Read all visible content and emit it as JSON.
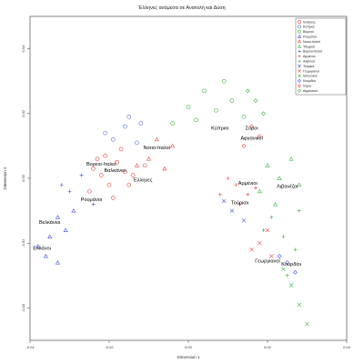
{
  "chart_data": {
    "type": "scatter",
    "title": "Έλληνες ανάμεσα σε Ανατολή και Δύση",
    "xlabel": "Dimension 1",
    "ylabel": "Dimension 2",
    "xlim": [
      -0.04,
      0.04
    ],
    "ylim": [
      -0.05,
      0.05
    ],
    "x_ticks": [
      -0.04,
      -0.02,
      0.0,
      0.02,
      0.04
    ],
    "y_ticks": [
      0.04,
      0.02,
      0.0,
      -0.02,
      -0.04
    ],
    "x_tick_labels": [
      "-0.04",
      "-0.02",
      "0.00",
      "0.02",
      "0.04"
    ],
    "y_tick_labels": [
      "0.04",
      "0.02",
      "0.00",
      "-0.02",
      "-0.04"
    ],
    "legend_position": "top-right",
    "series": [
      {
        "name": "Έλληνες",
        "color": "#e84040",
        "marker": "circle"
      },
      {
        "name": "Κύπριοι",
        "color": "#5a70e0",
        "marker": "circle"
      },
      {
        "name": "Βόρειοι",
        "color": "#40b040",
        "marker": "circle"
      },
      {
        "name": "Ρουμάνοι",
        "color": "#4050d8",
        "marker": "triangle"
      },
      {
        "name": "Νοτιο-Ιταλοί",
        "color": "#e84040",
        "marker": "triangle"
      },
      {
        "name": "Τσεχικοί",
        "color": "#40b040",
        "marker": "triangle"
      },
      {
        "name": "Βορειο-Ιταλοί",
        "color": "#4050d8",
        "marker": "plus"
      },
      {
        "name": "Αρμένιοι",
        "color": "#e84040",
        "marker": "plus"
      },
      {
        "name": "Αλβανοί",
        "color": "#40b040",
        "marker": "plus"
      },
      {
        "name": "Τούρκοι",
        "color": "#4050d8",
        "marker": "cross"
      },
      {
        "name": "Γεωργιανοί",
        "color": "#e84040",
        "marker": "cross"
      },
      {
        "name": "Ιαπωνικοί",
        "color": "#40b040",
        "marker": "cross"
      },
      {
        "name": "Κουρδίοι",
        "color": "#4050d8",
        "marker": "diamond"
      },
      {
        "name": "Σύροι",
        "color": "#e84040",
        "marker": "diamond"
      },
      {
        "name": "Αφγανικοί",
        "color": "#40b040",
        "marker": "diamond"
      }
    ],
    "group_labels": [
      {
        "text": "Νοτιο-Ιταλοί",
        "x": -0.008,
        "y": 0.009
      },
      {
        "text": "Κύπριοι",
        "x": 0.008,
        "y": 0.015
      },
      {
        "text": "Σύροι",
        "x": 0.016,
        "y": 0.015
      },
      {
        "text": "Αφγανικοί",
        "x": 0.016,
        "y": 0.012
      },
      {
        "text": "Βορειο-Ιταλοί",
        "x": -0.022,
        "y": 0.004
      },
      {
        "text": "Βαλκάνιοι",
        "x": -0.0185,
        "y": 0.002
      },
      {
        "text": "Έλληνες",
        "x": -0.0115,
        "y": -0.001
      },
      {
        "text": "Ρουμάνοι",
        "x": -0.0245,
        "y": -0.007
      },
      {
        "text": "Αρμένιοι",
        "x": 0.015,
        "y": -0.002
      },
      {
        "text": "Λιβανέζοι",
        "x": 0.025,
        "y": -0.003
      },
      {
        "text": "Τούρκοι",
        "x": 0.013,
        "y": -0.008
      },
      {
        "text": "Βελκάνιοι",
        "x": -0.035,
        "y": -0.014
      },
      {
        "text": "Ελλάνοι",
        "x": -0.037,
        "y": -0.022
      },
      {
        "text": "Γεωργιανοί",
        "x": 0.02,
        "y": -0.026
      },
      {
        "text": "Κουρδίοι",
        "x": 0.026,
        "y": -0.027
      }
    ],
    "points": [
      {
        "s": 0,
        "x": -0.024,
        "y": 0.003
      },
      {
        "s": 0,
        "x": -0.022,
        "y": 0.001
      },
      {
        "s": 0,
        "x": -0.02,
        "y": -0.002
      },
      {
        "s": 0,
        "x": -0.018,
        "y": 0.005
      },
      {
        "s": 0,
        "x": -0.016,
        "y": 0.002
      },
      {
        "s": 0,
        "x": -0.021,
        "y": 0.007
      },
      {
        "s": 0,
        "x": -0.025,
        "y": -0.004
      },
      {
        "s": 0,
        "x": -0.019,
        "y": -0.006
      },
      {
        "s": 0,
        "x": -0.014,
        "y": 0.001
      },
      {
        "s": 0,
        "x": -0.017,
        "y": 0.009
      },
      {
        "s": 0,
        "x": -0.023,
        "y": 0.006
      },
      {
        "s": 0,
        "x": -0.015,
        "y": -0.002
      },
      {
        "s": 1,
        "x": -0.019,
        "y": 0.012
      },
      {
        "s": 1,
        "x": -0.016,
        "y": 0.016
      },
      {
        "s": 1,
        "x": -0.013,
        "y": 0.011
      },
      {
        "s": 1,
        "x": -0.021,
        "y": 0.014
      },
      {
        "s": 1,
        "x": -0.012,
        "y": 0.017
      },
      {
        "s": 2,
        "x": 0.004,
        "y": 0.027
      },
      {
        "s": 2,
        "x": 0.007,
        "y": 0.021
      },
      {
        "s": 2,
        "x": 0.011,
        "y": 0.024
      },
      {
        "s": 2,
        "x": 0.002,
        "y": 0.018
      },
      {
        "s": 2,
        "x": 0.014,
        "y": 0.019
      },
      {
        "s": 2,
        "x": 0.009,
        "y": 0.03
      },
      {
        "s": 3,
        "x": -0.033,
        "y": -0.012
      },
      {
        "s": 3,
        "x": -0.035,
        "y": -0.018
      },
      {
        "s": 3,
        "x": -0.038,
        "y": -0.021
      },
      {
        "s": 3,
        "x": -0.031,
        "y": -0.016
      },
      {
        "s": 3,
        "x": -0.036,
        "y": -0.024
      },
      {
        "s": 3,
        "x": -0.029,
        "y": -0.01
      },
      {
        "s": 4,
        "x": -0.01,
        "y": 0.006
      },
      {
        "s": 4,
        "x": -0.006,
        "y": 0.003
      },
      {
        "s": 4,
        "x": -0.013,
        "y": 0.004
      },
      {
        "s": 4,
        "x": -0.004,
        "y": 0.01
      },
      {
        "s": 4,
        "x": -0.008,
        "y": 0.012
      },
      {
        "s": 5,
        "x": 0.02,
        "y": 0.004
      },
      {
        "s": 5,
        "x": 0.023,
        "y": 0.0
      },
      {
        "s": 5,
        "x": 0.026,
        "y": 0.006
      },
      {
        "s": 5,
        "x": 0.018,
        "y": -0.004
      },
      {
        "s": 5,
        "x": 0.028,
        "y": -0.002
      },
      {
        "s": 6,
        "x": -0.027,
        "y": 0.001
      },
      {
        "s": 6,
        "x": -0.03,
        "y": -0.004
      },
      {
        "s": 6,
        "x": -0.024,
        "y": -0.008
      },
      {
        "s": 6,
        "x": -0.032,
        "y": -0.002
      },
      {
        "s": 7,
        "x": 0.012,
        "y": -0.002
      },
      {
        "s": 7,
        "x": 0.015,
        "y": -0.005
      },
      {
        "s": 7,
        "x": 0.01,
        "y": 0.0
      },
      {
        "s": 7,
        "x": 0.017,
        "y": -0.003
      },
      {
        "s": 7,
        "x": 0.013,
        "y": -0.008
      },
      {
        "s": 8,
        "x": 0.021,
        "y": -0.012
      },
      {
        "s": 8,
        "x": 0.024,
        "y": -0.018
      },
      {
        "s": 8,
        "x": 0.027,
        "y": -0.022
      },
      {
        "s": 8,
        "x": 0.019,
        "y": -0.016
      },
      {
        "s": 8,
        "x": 0.025,
        "y": -0.03
      },
      {
        "s": 9,
        "x": 0.011,
        "y": -0.01
      },
      {
        "s": 9,
        "x": 0.014,
        "y": -0.013
      },
      {
        "s": 9,
        "x": 0.009,
        "y": -0.007
      },
      {
        "s": 10,
        "x": 0.018,
        "y": -0.02
      },
      {
        "s": 10,
        "x": 0.021,
        "y": -0.024
      },
      {
        "s": 10,
        "x": 0.016,
        "y": -0.022
      },
      {
        "s": 10,
        "x": 0.02,
        "y": -0.016
      },
      {
        "s": 11,
        "x": 0.026,
        "y": -0.033
      },
      {
        "s": 11,
        "x": 0.028,
        "y": -0.039
      },
      {
        "s": 11,
        "x": 0.024,
        "y": -0.028
      },
      {
        "s": 12,
        "x": 0.025,
        "y": -0.026
      },
      {
        "s": 12,
        "x": 0.027,
        "y": -0.029
      },
      {
        "s": 12,
        "x": 0.023,
        "y": -0.024
      },
      {
        "s": 13,
        "x": 0.016,
        "y": 0.016
      },
      {
        "s": 13,
        "x": 0.018,
        "y": 0.013
      },
      {
        "s": 13,
        "x": 0.014,
        "y": 0.01
      },
      {
        "s": 14,
        "x": 0.017,
        "y": 0.024
      },
      {
        "s": 14,
        "x": 0.019,
        "y": 0.02
      },
      {
        "s": 14,
        "x": 0.015,
        "y": 0.027
      },
      {
        "s": 2,
        "x": 0.0,
        "y": 0.022
      },
      {
        "s": 2,
        "x": -0.004,
        "y": 0.017
      },
      {
        "s": 5,
        "x": 0.022,
        "y": -0.008
      },
      {
        "s": 8,
        "x": 0.028,
        "y": -0.01
      },
      {
        "s": 11,
        "x": 0.03,
        "y": -0.045
      },
      {
        "s": 3,
        "x": -0.033,
        "y": -0.026
      },
      {
        "s": 1,
        "x": -0.015,
        "y": 0.019
      },
      {
        "s": 0,
        "x": -0.011,
        "y": 0.004
      },
      {
        "s": 7,
        "x": 0.008,
        "y": -0.005
      }
    ]
  }
}
